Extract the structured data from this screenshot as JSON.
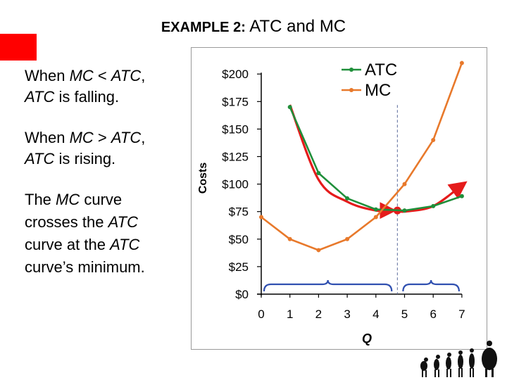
{
  "header": {
    "title_bold": "EXAMPLE 2:",
    "title_rest": "ATC and MC"
  },
  "text": {
    "p1_a": "When ",
    "p1_mc": "MC",
    "p1_b": " < ",
    "p1_atc": "ATC",
    "p1_c": ",",
    "p1_atc2": "ATC",
    "p1_d": " is falling.",
    "p2_a": "When ",
    "p2_mc": "MC",
    "p2_b": " > ",
    "p2_atc": "ATC",
    "p2_c": ",",
    "p2_atc2": "ATC",
    "p2_d": " is rising.",
    "p3_a": "The ",
    "p3_mc": "MC",
    "p3_b": " curve crosses the ",
    "p3_atc": "ATC",
    "p3_c": " curve at the ",
    "p3_atc2": "ATC",
    "p3_d": " curve’s minimum."
  },
  "colors": {
    "atc": "#1f8f3a",
    "mc": "#e8792b",
    "highlight": "#e51b1b",
    "brace": "#3050b0",
    "accent_square": "#ff0000"
  },
  "chart_data": {
    "type": "line",
    "xlabel": "Q",
    "ylabel": "Costs",
    "xlim": [
      0,
      7
    ],
    "ylim": [
      0,
      200
    ],
    "x_ticks": [
      "0",
      "1",
      "2",
      "3",
      "4",
      "5",
      "6",
      "7"
    ],
    "y_ticks": [
      "$0",
      "$25",
      "$50",
      "$75",
      "$100",
      "$125",
      "$150",
      "$175",
      "$200"
    ],
    "legend_position": "top-right",
    "series": [
      {
        "name": "ATC",
        "color": "#1f8f3a",
        "x": [
          1,
          2,
          3,
          4,
          5,
          6,
          7
        ],
        "y": [
          170,
          110,
          87,
          77,
          76,
          80,
          89
        ]
      },
      {
        "name": "MC",
        "color": "#e8792b",
        "x": [
          0,
          1,
          2,
          3,
          4,
          5,
          6,
          7
        ],
        "y": [
          70,
          50,
          40,
          50,
          70,
          100,
          140,
          210
        ]
      }
    ],
    "highlight_curve": {
      "x": [
        1,
        2,
        3,
        4,
        4.7,
        5,
        6,
        7
      ],
      "y": [
        172,
        104,
        84,
        76,
        76,
        75,
        80,
        99
      ]
    },
    "minimum_point": {
      "x": 4.75,
      "y": 76
    },
    "vertical_line_x": 4.75,
    "braces": [
      {
        "from": 0,
        "to": 4.65
      },
      {
        "from": 4.85,
        "to": 7
      }
    ]
  }
}
